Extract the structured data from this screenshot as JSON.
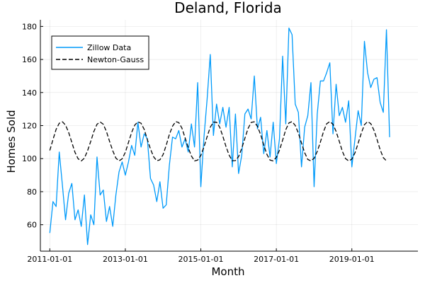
{
  "chart_data": {
    "type": "line",
    "title": "Deland, Florida",
    "xlabel": "Month",
    "ylabel": "Homes Sold",
    "x_axis_type": "date",
    "x_range": [
      "2010-10-01",
      "2020-10-01"
    ],
    "ylim": [
      44,
      184
    ],
    "xticks": [
      {
        "value": "2011-01-01",
        "label": "2011-01-01"
      },
      {
        "value": "2013-01-01",
        "label": "2013-01-01"
      },
      {
        "value": "2015-01-01",
        "label": "2015-01-01"
      },
      {
        "value": "2017-01-01",
        "label": "2017-01-01"
      },
      {
        "value": "2019-01-01",
        "label": "2019-01-01"
      }
    ],
    "yticks": [
      60,
      80,
      100,
      120,
      140,
      160,
      180
    ],
    "grid": true,
    "legend": {
      "position": "top-left"
    },
    "series": [
      {
        "name": "Zillow Data",
        "color": "#009AFA",
        "style": "solid",
        "x_start": "2011-01-01",
        "x_step": "month",
        "values": [
          55,
          74,
          71,
          104,
          84,
          63,
          79,
          85,
          63,
          69,
          59,
          78,
          48,
          66,
          60,
          101,
          78,
          81,
          62,
          71,
          59,
          78,
          92,
          98,
          90,
          98,
          108,
          102,
          122,
          107,
          115,
          112,
          88,
          84,
          74,
          86,
          70,
          72,
          96,
          113,
          112,
          117,
          107,
          112,
          104,
          121,
          107,
          146,
          83,
          113,
          136,
          163,
          114,
          133,
          121,
          131,
          119,
          131,
          95,
          127,
          91,
          102,
          127,
          130,
          124,
          150,
          118,
          125,
          103,
          117,
          101,
          122,
          97,
          112,
          162,
          121,
          179,
          175,
          133,
          128,
          95,
          119,
          126,
          146,
          83,
          127,
          147,
          147,
          152,
          158,
          115,
          145,
          126,
          131,
          122,
          135,
          95,
          112,
          129,
          120,
          171,
          152,
          143,
          148,
          149,
          134,
          128,
          178,
          113
        ]
      },
      {
        "name": "Newton-Gauss",
        "color": "#000000",
        "style": "dashed",
        "x_start": "2011-01-01",
        "x_step": "month",
        "values": [
          105,
          111.5,
          117.7,
          121.4,
          122.3,
          120.3,
          115.8,
          109.8,
          103.8,
          99.9,
          98.6,
          100.3,
          104.8,
          110.4,
          116.4,
          120.8,
          122.2,
          120.8,
          116.4,
          110.4,
          104.8,
          100.3,
          98.6,
          99.9,
          103.8,
          109.8,
          115.8,
          120.3,
          122.3,
          121.4,
          117.7,
          111.5,
          105.8,
          101.1,
          98.7,
          99.3,
          102.4,
          108.1,
          114.6,
          119.6,
          122.4,
          121.8,
          118.4,
          112.6,
          106.6,
          101.6,
          98.6,
          99.1,
          101.9,
          107.1,
          113.3,
          119.0,
          122.1,
          122.0,
          119.0,
          113.5,
          107.3,
          102.1,
          98.7,
          98.8,
          101.2,
          106.2,
          112.3,
          118.2,
          121.9,
          122.3,
          119.5,
          114.6,
          108.2,
          102.6,
          99.1,
          98.6,
          100.8,
          105.1,
          111.2,
          117.5,
          121.6,
          122.4,
          120.1,
          115.5,
          109.4,
          103.6,
          99.5,
          98.6,
          100.2,
          104.3,
          110.0,
          116.4,
          121.1,
          122.4,
          120.8,
          116.4,
          110.5,
          104.3,
          100.0,
          98.6,
          99.7,
          103.5,
          109.3,
          115.4,
          120.5,
          122.4,
          121.2,
          117.3,
          111.6,
          105.4,
          100.6,
          98.6
        ]
      }
    ]
  }
}
